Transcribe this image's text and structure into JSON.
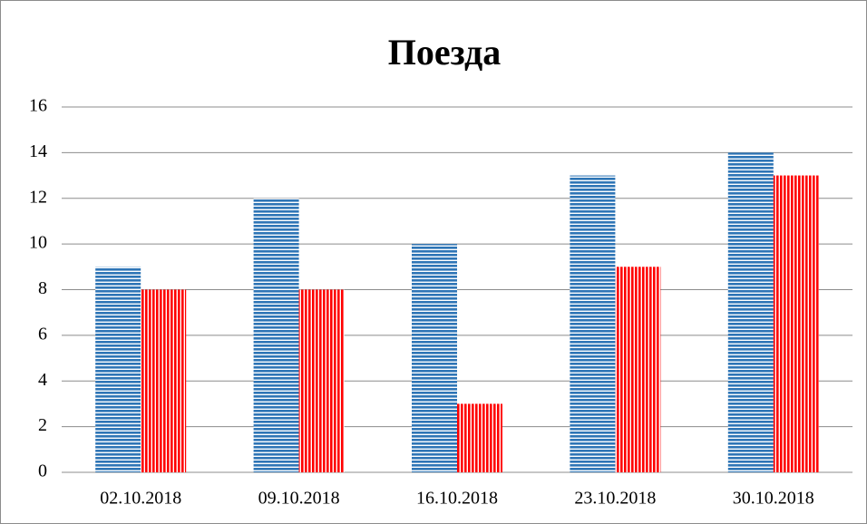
{
  "chart_data": {
    "type": "bar",
    "title": "Поезда",
    "categories": [
      "02.10.2018",
      "09.10.2018",
      "16.10.2018",
      "23.10.2018",
      "30.10.2018"
    ],
    "series": [
      {
        "color": "#2e75b6",
        "values": [
          9,
          12,
          10,
          13,
          14
        ]
      },
      {
        "color": "#ff0000",
        "values": [
          8,
          8,
          3,
          9,
          13
        ]
      }
    ],
    "ylim": [
      0,
      16
    ],
    "yticks": [
      0,
      2,
      4,
      6,
      8,
      10,
      12,
      14,
      16
    ],
    "grid": true
  }
}
